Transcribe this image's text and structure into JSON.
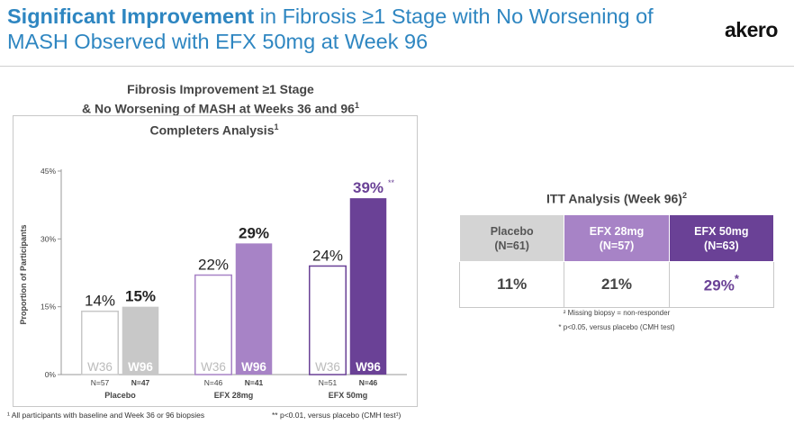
{
  "header": {
    "title_bold": "Significant Improvement",
    "title_rest": " in Fibrosis ≥1 Stage with No Worsening of MASH Observed with EFX 50mg at Week 96",
    "logo_text": "akero"
  },
  "chart_heading": {
    "line1": "Fibrosis Improvement ≥1 Stage",
    "line2": "& No Worsening of MASH at Weeks 36 and 96",
    "line2_sup": "1"
  },
  "chart_data": {
    "type": "bar",
    "title": "Completers Analysis",
    "title_sup": "1",
    "ylabel": "Proportion of Participants",
    "ylim": [
      0,
      45
    ],
    "yticks": [
      0,
      15,
      30,
      45
    ],
    "ytick_labels": [
      "0%",
      "15%",
      "30%",
      "45%"
    ],
    "groups": [
      {
        "name": "Placebo",
        "bars": [
          {
            "period": "W36",
            "value": 14,
            "label": "14%",
            "n": "N=57",
            "fill": "#ffffff",
            "stroke": "#c8c8c8",
            "label_color": "#222",
            "bold": false,
            "sup": ""
          },
          {
            "period": "W96",
            "value": 15,
            "label": "15%",
            "n": "N=47",
            "fill": "#c8c8c8",
            "stroke": "#c8c8c8",
            "label_color": "#222",
            "bold": true,
            "sup": ""
          }
        ]
      },
      {
        "name": "EFX 28mg",
        "bars": [
          {
            "period": "W36",
            "value": 22,
            "label": "22%",
            "n": "N=46",
            "fill": "#ffffff",
            "stroke": "#a783c6",
            "label_color": "#222",
            "bold": false,
            "sup": ""
          },
          {
            "period": "W96",
            "value": 29,
            "label": "29%",
            "n": "N=41",
            "fill": "#a783c6",
            "stroke": "#a783c6",
            "label_color": "#222",
            "bold": true,
            "sup": ""
          }
        ]
      },
      {
        "name": "EFX 50mg",
        "bars": [
          {
            "period": "W36",
            "value": 24,
            "label": "24%",
            "n": "N=51",
            "fill": "#ffffff",
            "stroke": "#6a4196",
            "label_color": "#222",
            "bold": false,
            "sup": ""
          },
          {
            "period": "W96",
            "value": 39,
            "label": "39%",
            "n": "N=46",
            "fill": "#6a4196",
            "stroke": "#6a4196",
            "label_color": "#6a4196",
            "bold": true,
            "sup": "**"
          }
        ]
      }
    ],
    "grid": false
  },
  "footnotes_left": {
    "one": "¹ All participants with baseline and Week 36 or 96 biopsies",
    "two": "** p<0.01, versus placebo (CMH test¹)"
  },
  "itt": {
    "title": "ITT Analysis (Week 96)",
    "title_sup": "2",
    "columns": [
      {
        "name": "Placebo",
        "n": "(N=61)",
        "value": "11%",
        "sup": ""
      },
      {
        "name": "EFX 28mg",
        "n": "(N=57)",
        "value": "21%",
        "sup": ""
      },
      {
        "name": "EFX 50mg",
        "n": "(N=63)",
        "value": "29%",
        "sup": "*"
      }
    ],
    "note1": "² Missing biopsy = non-responder",
    "note2": "* p<0.05, versus placebo (CMH test)"
  },
  "colors": {
    "title_blue": "#2e86c1",
    "placebo_gray": "#c8c8c8",
    "efx28_purple": "#a783c6",
    "efx50_purple": "#6a4196"
  }
}
